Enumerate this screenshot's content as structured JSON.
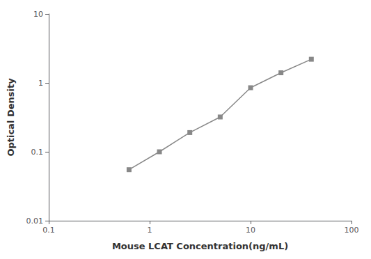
{
  "chart_data": {
    "type": "line",
    "x": [
      0.625,
      1.25,
      2.5,
      5,
      10,
      20,
      40
    ],
    "values": [
      0.055,
      0.1,
      0.19,
      0.32,
      0.85,
      1.4,
      2.2
    ],
    "xlabel": "Mouse LCAT Concentration(ng/mL)",
    "ylabel": "Optical Density",
    "xlim": [
      0.1,
      100
    ],
    "ylim": [
      0.01,
      10
    ],
    "xticks": [
      0.1,
      1,
      10,
      100
    ],
    "yticks": [
      0.01,
      0.1,
      1,
      10
    ],
    "log": true,
    "grid": false,
    "color": "#888888",
    "marker": "square",
    "line_style": "solid"
  }
}
